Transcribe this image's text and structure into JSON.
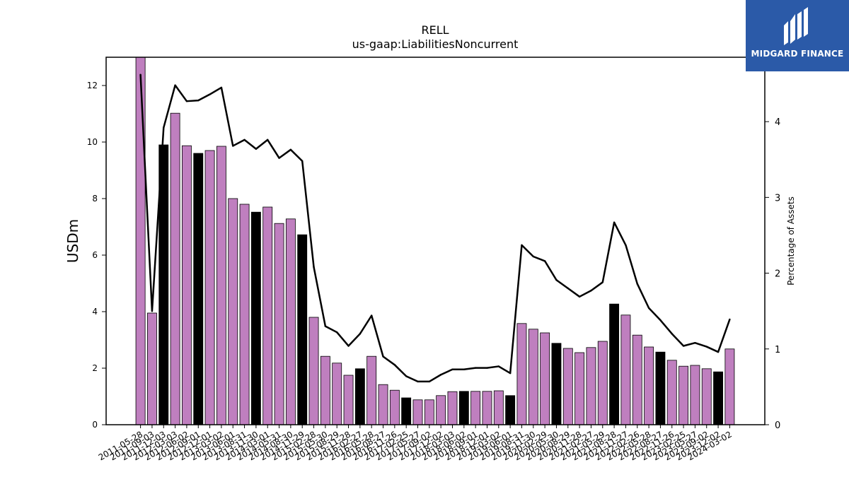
{
  "logo": {
    "text": "MIDGARD FINANCE",
    "color": "#2b5aa8",
    "icon": "midgard-logo-mark"
  },
  "chart_data": {
    "type": "bar",
    "title": "RELL",
    "subtitle": "us-gaap:LiabilitiesNoncurrent",
    "ylabel": "USDm",
    "y2label": "Percentage of Assets",
    "ylim": [
      0,
      13
    ],
    "y2lim": [
      0,
      4.85
    ],
    "yticks": [
      0,
      2,
      4,
      6,
      8,
      10,
      12
    ],
    "y2ticks": [
      0,
      1,
      2,
      3,
      4
    ],
    "grid": false,
    "colors": {
      "bar": "#bf7fbf",
      "bar_highlight": "#000000",
      "line": "#000000"
    },
    "categories": [
      "2011-05-28",
      "2011-09-03",
      "2011-12-03",
      "2012-03-03",
      "2012-06-02",
      "2012-09-01",
      "2012-12-01",
      "2013-03-02",
      "2013-06-01",
      "2013-08-31",
      "2013-11-30",
      "2014-03-01",
      "2014-05-31",
      "2014-08-30",
      "2014-11-29",
      "2015-02-28",
      "2015-05-30",
      "2015-08-29",
      "2015-11-28",
      "2016-02-27",
      "2016-05-28",
      "2016-08-27",
      "2016-11-26",
      "2017-02-25",
      "2017-05-27",
      "2017-09-02",
      "2017-12-02",
      "2018-03-03",
      "2018-06-02",
      "2018-09-01",
      "2018-12-01",
      "2019-03-02",
      "2019-06-01",
      "2019-08-31",
      "2019-11-30",
      "2020-02-29",
      "2020-05-30",
      "2020-08-29",
      "2020-11-28",
      "2021-02-27",
      "2021-05-29",
      "2021-08-28",
      "2021-11-27",
      "2022-02-26",
      "2022-05-28",
      "2022-08-27",
      "2022-11-26",
      "2023-02-25",
      "2023-05-27",
      "2023-09-02",
      "2023-12-02",
      "2024-03-02"
    ],
    "highlighted": [
      2,
      5,
      10,
      14,
      19,
      23,
      28,
      32,
      36,
      41,
      45,
      50
    ],
    "series": [
      {
        "type": "bar",
        "axis": "left",
        "values": [
          13.05,
          3.95,
          9.9,
          11.02,
          9.87,
          9.6,
          9.7,
          9.85,
          8.0,
          7.8,
          7.52,
          7.7,
          7.12,
          7.28,
          6.72,
          3.8,
          2.42,
          2.18,
          1.75,
          1.98,
          2.42,
          1.42,
          1.22,
          0.95,
          0.88,
          0.88,
          1.03,
          1.17,
          1.18,
          1.18,
          1.18,
          1.2,
          1.03,
          3.58,
          3.38,
          3.25,
          2.88,
          2.7,
          2.55,
          2.73,
          2.95,
          4.27,
          3.88,
          3.17,
          2.75,
          2.57,
          2.28,
          2.07,
          2.1,
          1.98,
          1.87,
          2.68
        ]
      },
      {
        "type": "line",
        "axis": "right",
        "values": [
          4.62,
          1.5,
          3.92,
          4.48,
          4.27,
          4.28,
          4.36,
          4.45,
          3.68,
          3.76,
          3.64,
          3.76,
          3.52,
          3.63,
          3.48,
          2.08,
          1.3,
          1.22,
          1.04,
          1.2,
          1.44,
          0.9,
          0.79,
          0.64,
          0.57,
          0.57,
          0.66,
          0.73,
          0.73,
          0.75,
          0.75,
          0.77,
          0.68,
          2.37,
          2.22,
          2.16,
          1.91,
          1.8,
          1.69,
          1.77,
          1.88,
          2.67,
          2.37,
          1.86,
          1.54,
          1.38,
          1.2,
          1.04,
          1.08,
          1.03,
          0.96,
          1.39
        ]
      }
    ]
  }
}
